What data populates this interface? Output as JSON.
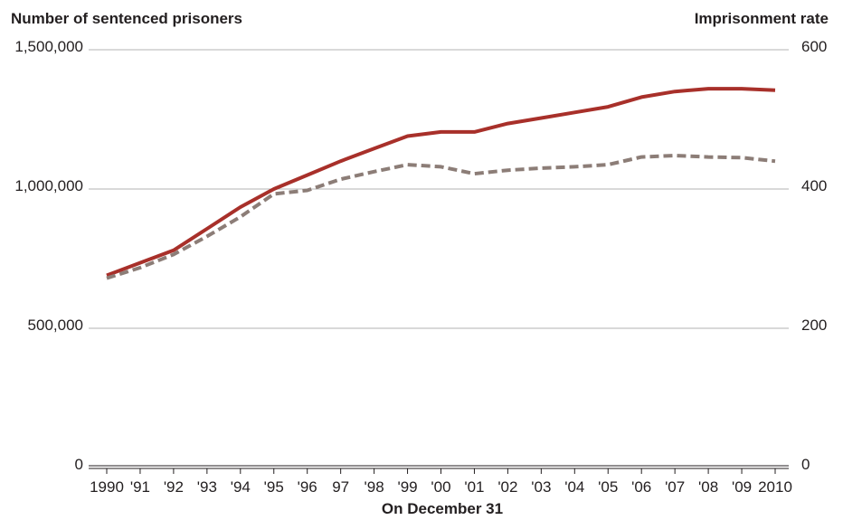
{
  "chart_data": {
    "type": "line",
    "title": "",
    "ylabel_left": "Number of sentenced prisoners",
    "ylabel_right": "Imprisonment rate",
    "xlabel": "On December 31",
    "categories": [
      "1990",
      "'91",
      "'92",
      "'93",
      "'94",
      "'95",
      "'96",
      "97",
      "'98",
      "'99",
      "'00",
      "'01",
      "'02",
      "'03",
      "'04",
      "'05",
      "'06",
      "'07",
      "'08",
      "'09",
      "2010"
    ],
    "left_axis": {
      "min": 0,
      "max": 1500000,
      "ticks": [
        0,
        500000,
        1000000,
        1500000
      ],
      "tick_labels": [
        "0",
        "500,000",
        "1,000,000",
        "1,500,000"
      ]
    },
    "right_axis": {
      "min": 0,
      "max": 600,
      "ticks": [
        0,
        200,
        400,
        600
      ],
      "tick_labels": [
        "0",
        "200",
        "400",
        "600"
      ]
    },
    "grid": true,
    "series": [
      {
        "axis": "left",
        "style": "solid",
        "color": "#a8302a",
        "values": [
          690000,
          735000,
          780000,
          857000,
          935000,
          1000000,
          1050000,
          1100000,
          1145000,
          1190000,
          1205000,
          1205000,
          1235000,
          1255000,
          1275000,
          1295000,
          1330000,
          1350000,
          1360000,
          1360000,
          1355000
        ]
      },
      {
        "axis": "right",
        "style": "dashed",
        "color": "#8c7d77",
        "values": [
          272,
          287,
          306,
          332,
          360,
          393,
          398,
          414,
          425,
          435,
          432,
          422,
          427,
          430,
          432,
          435,
          446,
          448,
          446,
          445,
          440
        ]
      }
    ]
  }
}
